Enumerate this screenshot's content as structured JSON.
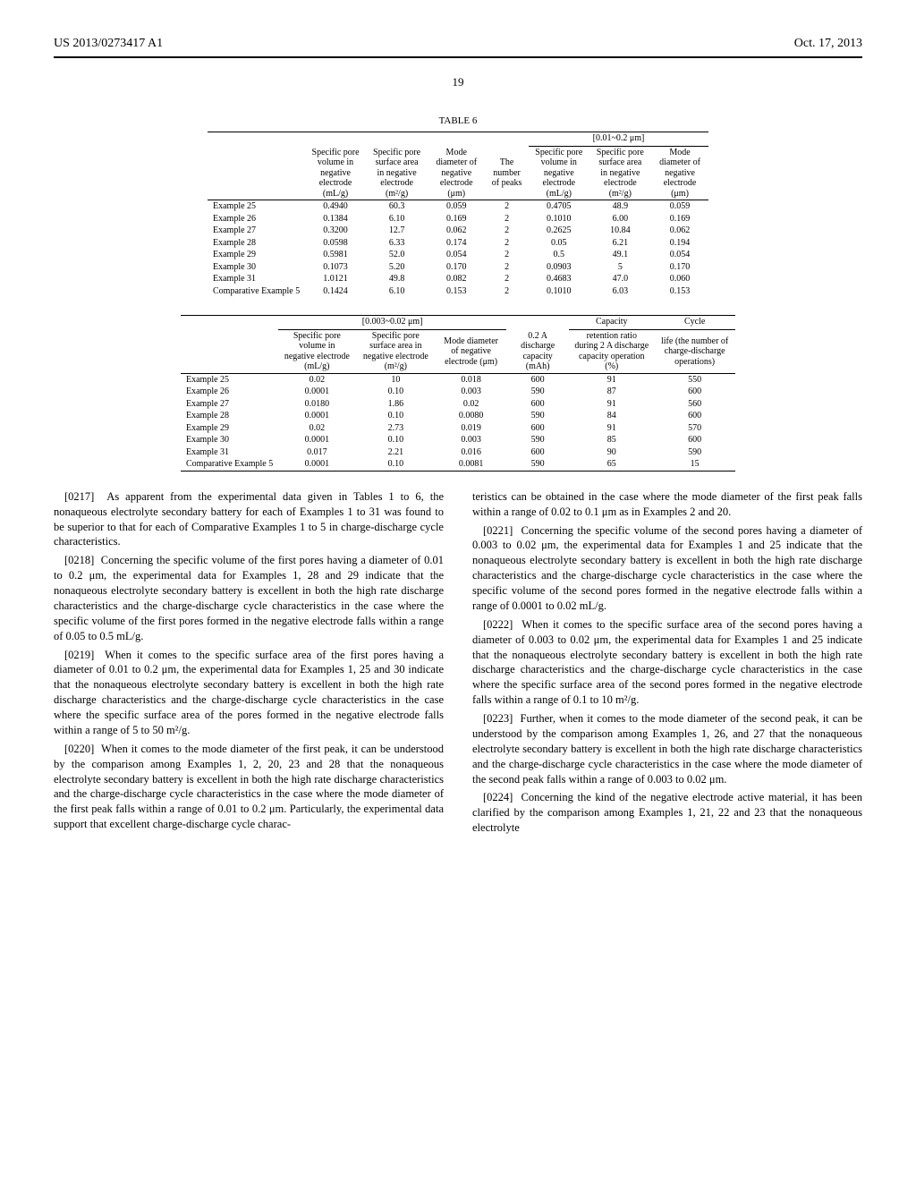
{
  "header": {
    "left": "US 2013/0273417 A1",
    "right": "Oct. 17, 2013"
  },
  "page_number": "19",
  "table6": {
    "title": "TABLE 6",
    "part_a": {
      "span_head": "[0.01~0.2 μm]",
      "col_heads": {
        "c1": "Specific pore volume in negative electrode (mL/g)",
        "c2": "Specific pore surface area in negative electrode (m²/g)",
        "c3": "Mode diameter of negative electrode (μm)",
        "c4": "The number of peaks",
        "c5": "Specific pore volume in negative electrode (mL/g)",
        "c6": "Specific pore surface area in negative electrode (m²/g)",
        "c7": "Mode diameter of negative electrode (μm)"
      },
      "rows": [
        {
          "label": "Example 25",
          "c1": "0.4940",
          "c2": "60.3",
          "c3": "0.059",
          "c4": "2",
          "c5": "0.4705",
          "c6": "48.9",
          "c7": "0.059"
        },
        {
          "label": "Example 26",
          "c1": "0.1384",
          "c2": "6.10",
          "c3": "0.169",
          "c4": "2",
          "c5": "0.1010",
          "c6": "6.00",
          "c7": "0.169"
        },
        {
          "label": "Example 27",
          "c1": "0.3200",
          "c2": "12.7",
          "c3": "0.062",
          "c4": "2",
          "c5": "0.2625",
          "c6": "10.84",
          "c7": "0.062"
        },
        {
          "label": "Example 28",
          "c1": "0.0598",
          "c2": "6.33",
          "c3": "0.174",
          "c4": "2",
          "c5": "0.05",
          "c6": "6.21",
          "c7": "0.194"
        },
        {
          "label": "Example 29",
          "c1": "0.5981",
          "c2": "52.0",
          "c3": "0.054",
          "c4": "2",
          "c5": "0.5",
          "c6": "49.1",
          "c7": "0.054"
        },
        {
          "label": "Example 30",
          "c1": "0.1073",
          "c2": "5.20",
          "c3": "0.170",
          "c4": "2",
          "c5": "0.0903",
          "c6": "5",
          "c7": "0.170"
        },
        {
          "label": "Example 31",
          "c1": "1.0121",
          "c2": "49.8",
          "c3": "0.082",
          "c4": "2",
          "c5": "0.4683",
          "c6": "47.0",
          "c7": "0.060"
        },
        {
          "label": "Comparative Example 5",
          "c1": "0.1424",
          "c2": "6.10",
          "c3": "0.153",
          "c4": "2",
          "c5": "0.1010",
          "c6": "6.03",
          "c7": "0.153"
        }
      ]
    },
    "part_b": {
      "span_head_1": "[0.003~0.02 μm]",
      "span_head_2": "Capacity",
      "span_head_3": "Cycle",
      "col_heads": {
        "c1": "Specific pore volume in negative electrode (mL/g)",
        "c2": "Specific pore surface area in negative electrode (m²/g)",
        "c3": "Mode diameter of negative electrode (μm)",
        "c4": "0.2 A discharge capacity (mAh)",
        "c5": "retention ratio during 2 A discharge capacity operation (%)",
        "c6": "life (the number of charge-discharge operations)"
      },
      "rows": [
        {
          "label": "Example 25",
          "c1": "0.02",
          "c2": "10",
          "c3": "0.018",
          "c4": "600",
          "c5": "91",
          "c6": "550"
        },
        {
          "label": "Example 26",
          "c1": "0.0001",
          "c2": "0.10",
          "c3": "0.003",
          "c4": "590",
          "c5": "87",
          "c6": "600"
        },
        {
          "label": "Example 27",
          "c1": "0.0180",
          "c2": "1.86",
          "c3": "0.02",
          "c4": "600",
          "c5": "91",
          "c6": "560"
        },
        {
          "label": "Example 28",
          "c1": "0.0001",
          "c2": "0.10",
          "c3": "0.0080",
          "c4": "590",
          "c5": "84",
          "c6": "600"
        },
        {
          "label": "Example 29",
          "c1": "0.02",
          "c2": "2.73",
          "c3": "0.019",
          "c4": "600",
          "c5": "91",
          "c6": "570"
        },
        {
          "label": "Example 30",
          "c1": "0.0001",
          "c2": "0.10",
          "c3": "0.003",
          "c4": "590",
          "c5": "85",
          "c6": "600"
        },
        {
          "label": "Example 31",
          "c1": "0.017",
          "c2": "2.21",
          "c3": "0.016",
          "c4": "600",
          "c5": "90",
          "c6": "590"
        },
        {
          "label": "Comparative Example 5",
          "c1": "0.0001",
          "c2": "0.10",
          "c3": "0.0081",
          "c4": "590",
          "c5": "65",
          "c6": "15"
        }
      ]
    }
  },
  "paragraphs": {
    "p0217": "As apparent from the experimental data given in Tables 1 to 6, the nonaqueous electrolyte secondary battery for each of Examples 1 to 31 was found to be superior to that for each of Comparative Examples 1 to 5 in charge-discharge cycle characteristics.",
    "p0218": "Concerning the specific volume of the first pores having a diameter of 0.01 to 0.2 μm, the experimental data for Examples 1, 28 and 29 indicate that the nonaqueous electrolyte secondary battery is excellent in both the high rate discharge characteristics and the charge-discharge cycle characteristics in the case where the specific volume of the first pores formed in the negative electrode falls within a range of 0.05 to 0.5 mL/g.",
    "p0219": "When it comes to the specific surface area of the first pores having a diameter of 0.01 to 0.2 μm, the experimental data for Examples 1, 25 and 30 indicate that the nonaqueous electrolyte secondary battery is excellent in both the high rate discharge characteristics and the charge-discharge cycle characteristics in the case where the specific surface area of the pores formed in the negative electrode falls within a range of 5 to 50 m²/g.",
    "p0220": "When it comes to the mode diameter of the first peak, it can be understood by the comparison among Examples 1, 2, 20, 23 and 28 that the nonaqueous electrolyte secondary battery is excellent in both the high rate discharge characteristics and the charge-discharge cycle characteristics in the case where the mode diameter of the first peak falls within a range of 0.01 to 0.2 μm. Particularly, the experimental data support that excellent charge-discharge cycle charac-",
    "p0220b": "teristics can be obtained in the case where the mode diameter of the first peak falls within a range of 0.02 to 0.1 μm as in Examples 2 and 20.",
    "p0221": "Concerning the specific volume of the second pores having a diameter of 0.003 to 0.02 μm, the experimental data for Examples 1 and 25 indicate that the nonaqueous electrolyte secondary battery is excellent in both the high rate discharge characteristics and the charge-discharge cycle characteristics in the case where the specific volume of the second pores formed in the negative electrode falls within a range of 0.0001 to 0.02 mL/g.",
    "p0222": "When it comes to the specific surface area of the second pores having a diameter of 0.003 to 0.02 μm, the experimental data for Examples 1 and 25 indicate that the nonaqueous electrolyte secondary battery is excellent in both the high rate discharge characteristics and the charge-discharge cycle characteristics in the case where the specific surface area of the second pores formed in the negative electrode falls within a range of 0.1 to 10 m²/g.",
    "p0223": "Further, when it comes to the mode diameter of the second peak, it can be understood by the comparison among Examples 1, 26, and 27 that the nonaqueous electrolyte secondary battery is excellent in both the high rate discharge characteristics and the charge-discharge cycle characteristics in the case where the mode diameter of the second peak falls within a range of 0.003 to 0.02 μm.",
    "p0224": "Concerning the kind of the negative electrode active material, it has been clarified by the comparison among Examples 1, 21, 22 and 23 that the nonaqueous electrolyte"
  },
  "para_nums": {
    "n0217": "[0217]",
    "n0218": "[0218]",
    "n0219": "[0219]",
    "n0220": "[0220]",
    "n0221": "[0221]",
    "n0222": "[0222]",
    "n0223": "[0223]",
    "n0224": "[0224]"
  }
}
